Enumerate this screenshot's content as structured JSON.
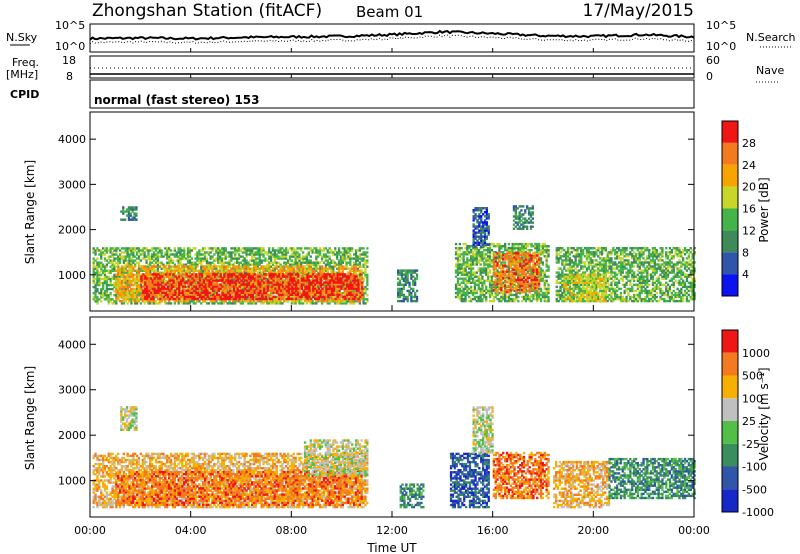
{
  "header": {
    "station": "Zhongshan Station (fitACF)",
    "beam": "Beam 01",
    "date": "17/May/2015"
  },
  "top_panels": {
    "nsky_label": "N.Sky",
    "nsky_ticks": [
      "10^5",
      "10^0"
    ],
    "nsearch_label": "N.Search",
    "nsearch_ticks": [
      "10^5",
      "10^0"
    ],
    "freq_label": "Freq.",
    "freq_unit": "[MHz]",
    "freq_ticks": [
      "18",
      "8"
    ],
    "nave_label": "Nave",
    "nave_ticks": [
      "60",
      "0"
    ],
    "cpid_label": "CPID",
    "cpid_text": "normal (fast stereo) 153"
  },
  "axes": {
    "ylabel": "Slant Range [km]",
    "yticks": [
      1000,
      2000,
      3000,
      4000
    ],
    "ylim": [
      200,
      4600
    ],
    "xlabel": "Time UT",
    "xticks": [
      "00:00",
      "04:00",
      "08:00",
      "12:00",
      "16:00",
      "20:00",
      "00:00"
    ],
    "xlim_hours": [
      0,
      24
    ]
  },
  "power_scale": {
    "label": "Power [dB]",
    "ticks": [
      "4",
      "8",
      "12",
      "16",
      "20",
      "24",
      "28"
    ],
    "colors": [
      "#0b14ee",
      "#2f56a8",
      "#3e8a5a",
      "#44b34a",
      "#c8d62a",
      "#f6a400",
      "#f47a1f",
      "#ef1616"
    ]
  },
  "velocity_scale": {
    "label": "Velocity [m s⁻¹]",
    "ticks": [
      "1000",
      "500",
      "100",
      "25",
      "-25",
      "-100",
      "-500",
      "-1000"
    ],
    "colors": [
      "#1629c8",
      "#2f56a8",
      "#3a8d5c",
      "#52c046",
      "#c0c0c0",
      "#f6b000",
      "#f47a1f",
      "#ef1616"
    ]
  },
  "chart_data": [
    {
      "type": "line",
      "name": "N.Sky / N.Search / Freq / Nave",
      "x_hours": [
        0,
        2,
        4,
        6,
        8,
        10,
        12,
        14,
        16,
        18,
        20,
        22,
        24
      ],
      "series": [
        {
          "values": [
            2.4,
            2.5,
            2.4,
            2.6,
            2.7,
            2.8,
            3.1,
            3.6,
            3.3,
            2.9,
            2.8,
            3.1,
            2.7
          ]
        }
      ]
    },
    {
      "type": "heatmap",
      "name": "power",
      "xlabel": "Time UT",
      "ylabel": "Slant Range [km]",
      "ylim": [
        200,
        4600
      ],
      "xlim_hours": [
        0,
        24
      ],
      "regions": [
        {
          "t0": 0.1,
          "t1": 11.0,
          "r0": 350,
          "r1": 1600,
          "level": 3
        },
        {
          "t0": 1.0,
          "t1": 10.8,
          "r0": 400,
          "r1": 1200,
          "level": 5
        },
        {
          "t0": 2.0,
          "t1": 10.8,
          "r0": 450,
          "r1": 1000,
          "level": 7
        },
        {
          "t0": 1.2,
          "t1": 1.8,
          "r0": 2200,
          "r1": 2500,
          "level": 2
        },
        {
          "t0": 12.2,
          "t1": 13.0,
          "r0": 400,
          "r1": 1100,
          "level": 2
        },
        {
          "t0": 14.5,
          "t1": 18.2,
          "r0": 400,
          "r1": 1700,
          "level": 3
        },
        {
          "t0": 15.2,
          "t1": 15.8,
          "r0": 1600,
          "r1": 2500,
          "level": 1
        },
        {
          "t0": 16.0,
          "t1": 17.8,
          "r0": 600,
          "r1": 1500,
          "level": 6
        },
        {
          "t0": 16.8,
          "t1": 17.6,
          "r0": 2000,
          "r1": 2500,
          "level": 2
        },
        {
          "t0": 18.5,
          "t1": 24.0,
          "r0": 400,
          "r1": 1600,
          "level": 3
        },
        {
          "t0": 18.8,
          "t1": 20.5,
          "r0": 400,
          "r1": 1000,
          "level": 4
        }
      ]
    },
    {
      "type": "heatmap",
      "name": "velocity",
      "xlabel": "Time UT",
      "ylabel": "Slant Range [km]",
      "ylim": [
        200,
        4600
      ],
      "xlim_hours": [
        0,
        24
      ],
      "regions": [
        {
          "t0": 0.1,
          "t1": 11.0,
          "r0": 400,
          "r1": 1600,
          "level": 5
        },
        {
          "t0": 1.0,
          "t1": 10.8,
          "r0": 450,
          "r1": 1200,
          "level": 6
        },
        {
          "t0": 8.5,
          "t1": 11.0,
          "r0": 1100,
          "r1": 1900,
          "level": 4
        },
        {
          "t0": 1.2,
          "t1": 1.8,
          "r0": 2100,
          "r1": 2600,
          "level": 4
        },
        {
          "t0": 12.3,
          "t1": 13.2,
          "r0": 400,
          "r1": 900,
          "level": 2
        },
        {
          "t0": 14.3,
          "t1": 15.8,
          "r0": 400,
          "r1": 1600,
          "level": 1
        },
        {
          "t0": 15.2,
          "t1": 16.0,
          "r0": 1600,
          "r1": 2600,
          "level": 4
        },
        {
          "t0": 16.0,
          "t1": 18.2,
          "r0": 600,
          "r1": 1600,
          "level": 6
        },
        {
          "t0": 18.4,
          "t1": 20.6,
          "r0": 400,
          "r1": 1400,
          "level": 5
        },
        {
          "t0": 20.6,
          "t1": 24.0,
          "r0": 600,
          "r1": 1500,
          "level": 2
        }
      ]
    }
  ]
}
